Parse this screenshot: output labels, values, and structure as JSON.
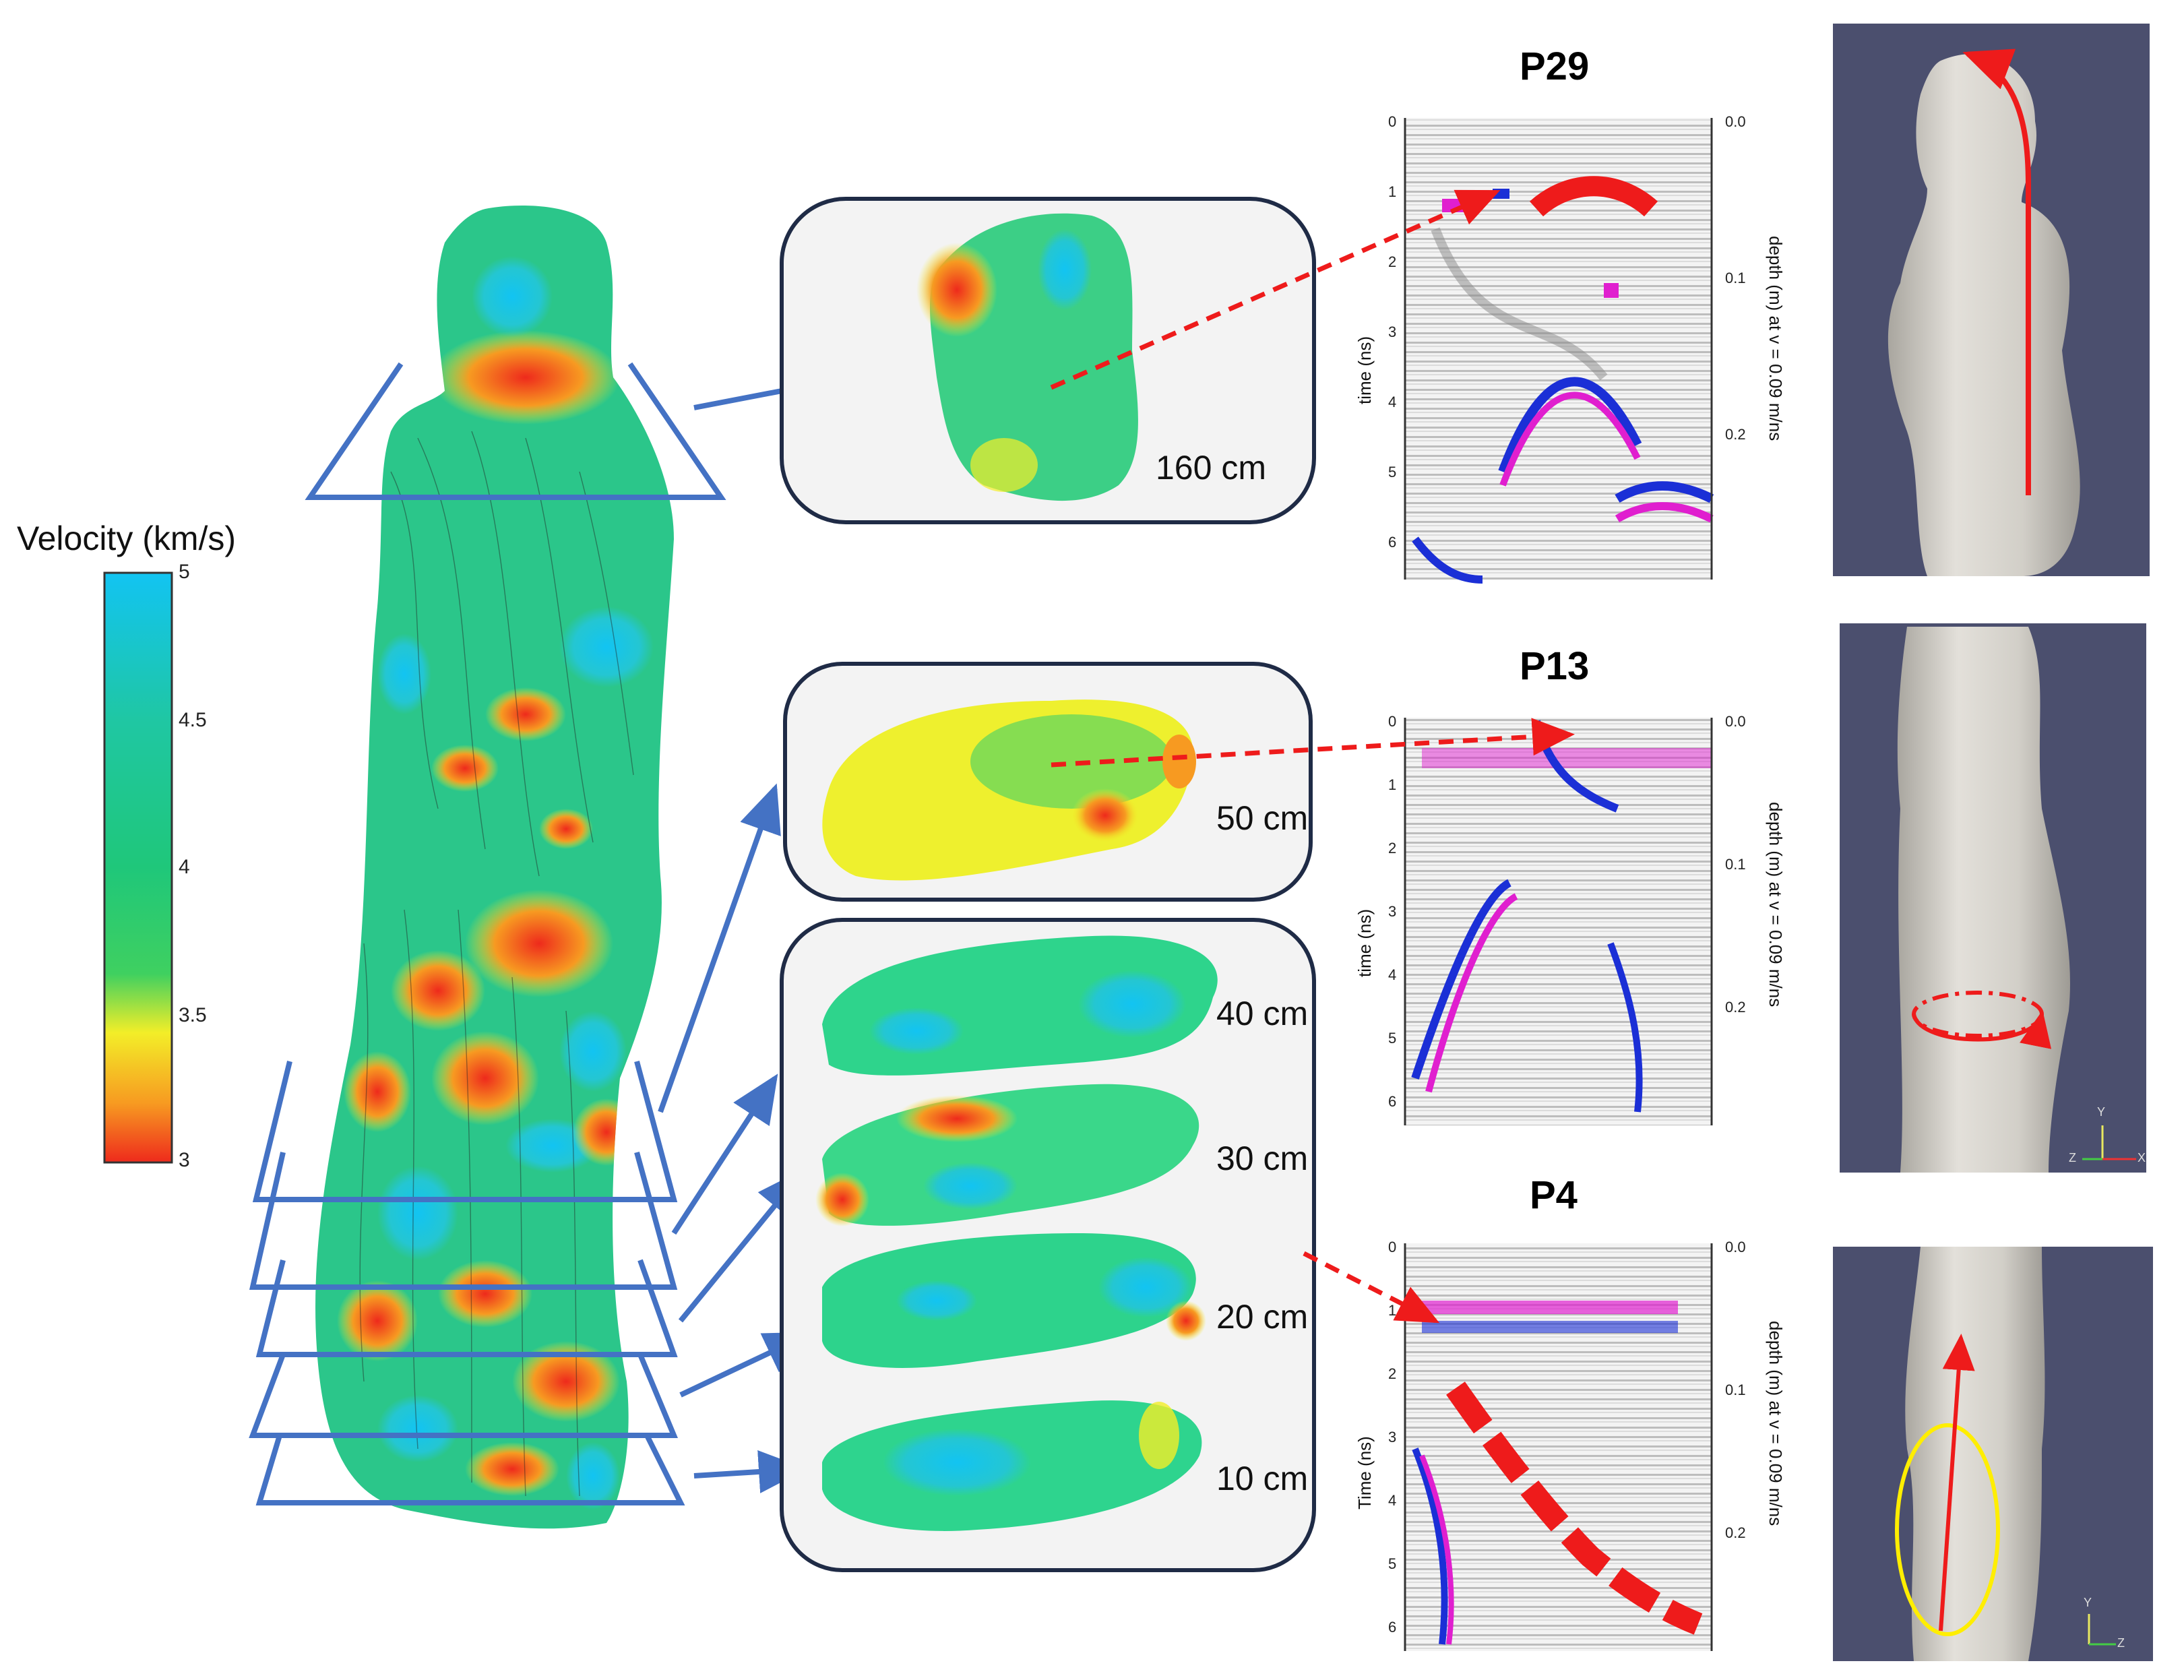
{
  "colorbar": {
    "title": "Velocity (km/s)",
    "ticks": [
      "5",
      "4.5",
      "4",
      "3.5",
      "3"
    ],
    "colors": [
      "#12c4f2",
      "#1fc7a3",
      "#1fc77a",
      "#3fd060",
      "#f3ee28",
      "#f79a21",
      "#ee2a1c"
    ]
  },
  "slices": [
    {
      "label": "160 cm"
    },
    {
      "label": "50 cm"
    },
    {
      "label": "40 cm"
    },
    {
      "label": "30 cm"
    },
    {
      "label": "20 cm"
    },
    {
      "label": "10 cm"
    }
  ],
  "gpr_panels": [
    {
      "title": "P29",
      "time_label": "time (ns)",
      "depth_label": "depth (m) at v = 0.09 m/ns",
      "time_ticks": [
        "0",
        "1",
        "2",
        "3",
        "4",
        "5",
        "6"
      ],
      "depth_ticks": [
        "0.0",
        "0.1",
        "0.2"
      ]
    },
    {
      "title": "P13",
      "time_label": "time (ns)",
      "depth_label": "depth (m) at v = 0.09 m/ns",
      "time_ticks": [
        "0",
        "1",
        "2",
        "3",
        "4",
        "5",
        "6"
      ],
      "depth_ticks": [
        "0.0",
        "0.1",
        "0.2"
      ]
    },
    {
      "title": "P4",
      "time_label": "Time (ns)",
      "depth_label": "depth (m) at v = 0.09 m/ns",
      "time_ticks": [
        "0",
        "1",
        "2",
        "3",
        "4",
        "5",
        "6"
      ],
      "depth_ticks": [
        "0.0",
        "0.1",
        "0.2"
      ]
    }
  ],
  "axes_triads": [
    {
      "labels": [
        "Y",
        "Z",
        "X"
      ]
    },
    {
      "labels": [
        "Y",
        "Z"
      ]
    }
  ],
  "colors": {
    "arrow_blue": "#4472c4",
    "arrow_red": "#ee1b1b",
    "render_bg": "#4b4f6e",
    "statue_tone": "#dcd9d2",
    "highlight_yellow": "#ffee00",
    "reflector_magenta": "#e01fcf",
    "reflector_blue": "#1b2fd6"
  }
}
